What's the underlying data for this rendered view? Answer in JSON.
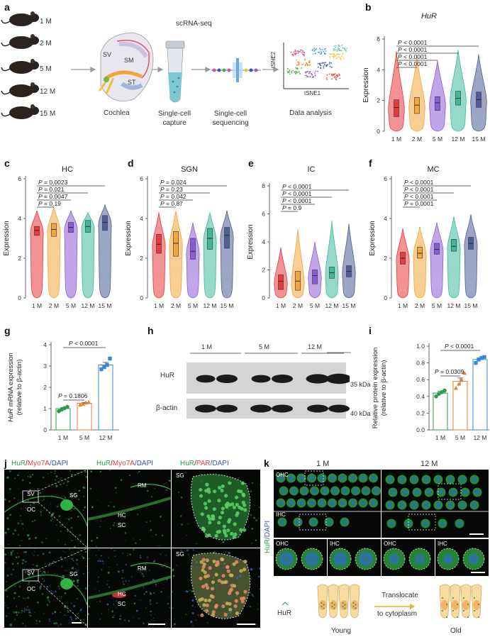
{
  "colors": {
    "1M": "#e8393d",
    "2M": "#f2a63b",
    "5M": "#8d5bd6",
    "12M": "#3fb99a",
    "15M": "#4d5f96",
    "green": "#2aa24a",
    "red_stain": "#e8393d",
    "blue_stain": "#3d56b4"
  },
  "panel_a": {
    "label": "a",
    "ages": [
      "1 M",
      "2 M",
      "5 M",
      "12 M",
      "15 M"
    ],
    "method": "scRNA-seq",
    "cochlea_regions": [
      "SV",
      "SM",
      "ST"
    ],
    "steps": [
      "Cochlea",
      "Single-cell capture",
      "Single-cell sequencing",
      "Data analysis"
    ],
    "tsne_x": "tSNE1",
    "tsne_y": "tSNE2"
  },
  "violin_panels": [
    {
      "label": "b",
      "title": "HuR",
      "italic": true,
      "ylabel": "Expression",
      "ylim": [
        0,
        6
      ],
      "yticks": [
        0,
        2,
        4,
        6
      ],
      "categories": [
        "1 M",
        "2 M",
        "5 M",
        "12 M",
        "15 M"
      ],
      "medians": [
        1.55,
        1.7,
        1.85,
        2.15,
        2.05
      ],
      "q1": [
        0.95,
        1.15,
        1.35,
        1.7,
        1.55
      ],
      "q3": [
        2.05,
        2.2,
        2.25,
        2.6,
        2.55
      ],
      "tops": [
        5.2,
        4.8,
        4.6,
        5.3,
        5.0
      ],
      "pvalues": [
        "P < 0.0001",
        "P < 0.0001",
        "P < 0.0001",
        "P < 0.0001"
      ],
      "pvalue_targets": [
        1,
        2,
        3,
        4
      ]
    },
    {
      "label": "c",
      "title": "HC",
      "italic": false,
      "ylabel": "Expression",
      "ylim": [
        0,
        6
      ],
      "yticks": [
        0,
        2,
        4,
        6
      ],
      "categories": [
        "1 M",
        "2 M",
        "5 M",
        "12 M",
        "15 M"
      ],
      "medians": [
        3.4,
        3.45,
        3.55,
        3.6,
        3.8
      ],
      "q1": [
        3.15,
        3.1,
        3.3,
        3.3,
        3.4
      ],
      "q3": [
        3.6,
        3.75,
        3.8,
        3.9,
        4.15
      ],
      "tops": [
        4.4,
        4.6,
        4.4,
        4.3,
        4.7
      ],
      "pvalues": [
        "P = 0.19",
        "P = 0.0047",
        "P = 0.021",
        "P = 0.0023"
      ],
      "pvalue_targets": [
        1,
        2,
        3,
        4
      ]
    },
    {
      "label": "d",
      "title": "SGN",
      "italic": false,
      "ylabel": "Expression",
      "ylim": [
        0,
        6
      ],
      "yticks": [
        0,
        2,
        4,
        6
      ],
      "categories": [
        "1 M",
        "2 M",
        "5 M",
        "12 M",
        "15 M"
      ],
      "medians": [
        2.7,
        2.75,
        2.35,
        3.0,
        3.15
      ],
      "q1": [
        2.25,
        2.1,
        1.95,
        2.45,
        2.5
      ],
      "q3": [
        3.2,
        3.35,
        3.0,
        3.5,
        3.55
      ],
      "tops": [
        4.3,
        4.4,
        3.8,
        4.3,
        4.4
      ],
      "pvalues": [
        "P = 0.87",
        "P = 0.042",
        "P = 0.23",
        "P = 0.024"
      ],
      "pvalue_targets": [
        1,
        2,
        3,
        4
      ]
    },
    {
      "label": "e",
      "title": "IC",
      "italic": false,
      "ylabel": "Expression",
      "ylim": [
        0,
        8
      ],
      "yticks": [
        0,
        2,
        4,
        6,
        8
      ],
      "categories": [
        "1 M",
        "2 M",
        "5 M",
        "12 M",
        "15 M"
      ],
      "medians": [
        1.2,
        1.2,
        1.6,
        1.8,
        1.9
      ],
      "q1": [
        0.6,
        0.55,
        1.0,
        1.4,
        1.5
      ],
      "q3": [
        1.65,
        1.9,
        2.0,
        2.2,
        2.3
      ],
      "tops": [
        3.6,
        4.9,
        4.0,
        5.5,
        5.3
      ],
      "pvalues": [
        "P = 0.9",
        "P < 0.0001",
        "P < 0.0001",
        "P < 0.0001"
      ],
      "pvalue_targets": [
        1,
        2,
        3,
        4
      ]
    },
    {
      "label": "f",
      "title": "MC",
      "italic": false,
      "ylabel": "Expression",
      "ylim": [
        0,
        6
      ],
      "yticks": [
        0,
        2,
        4,
        6
      ],
      "categories": [
        "1 M",
        "2 M",
        "5 M",
        "12 M",
        "15 M"
      ],
      "medians": [
        2.0,
        2.25,
        2.45,
        2.6,
        2.75
      ],
      "q1": [
        1.7,
        2.0,
        2.2,
        2.35,
        2.45
      ],
      "q3": [
        2.3,
        2.55,
        2.75,
        2.95,
        3.05
      ],
      "tops": [
        3.5,
        3.6,
        3.8,
        4.1,
        4.2
      ],
      "pvalues": [
        "P = 0.0001",
        "P < 0.0001",
        "P < 0.0001",
        "P < 0.0001"
      ],
      "pvalue_targets": [
        1,
        2,
        3,
        4
      ]
    }
  ],
  "chart_data": [
    {
      "type": "bar",
      "panel": "g",
      "categories": [
        "1 M",
        "5 M",
        "12 M"
      ],
      "values": [
        1.0,
        1.25,
        3.05
      ],
      "points": [
        [
          0.88,
          0.95,
          1.02,
          1.08
        ],
        [
          1.18,
          1.22,
          1.28,
          1.3
        ],
        [
          2.85,
          2.95,
          3.05,
          3.35
        ]
      ],
      "errors": [
        0.05,
        0.04,
        0.12
      ],
      "ylim": [
        0,
        4
      ],
      "yticks": [
        0,
        1,
        2,
        3,
        4
      ],
      "ylabel_italic": "HuR",
      "ylabel_rest": " mRNA expression",
      "ylabel2": "(relative to β-actin)",
      "pvalues": [
        {
          "text": "P = 0.1806",
          "from": 0,
          "to": 1
        },
        {
          "text": "P < 0.0001",
          "from": 0,
          "to": 2
        }
      ]
    },
    {
      "type": "bar",
      "panel": "i",
      "categories": [
        "1 M",
        "5 M",
        "12 M"
      ],
      "values": [
        0.44,
        0.58,
        0.84
      ],
      "points": [
        [
          0.4,
          0.43,
          0.45,
          0.47
        ],
        [
          0.5,
          0.55,
          0.6,
          0.68
        ],
        [
          0.8,
          0.84,
          0.86,
          0.87
        ]
      ],
      "errors": [
        0.02,
        0.04,
        0.02
      ],
      "ylim": [
        0,
        1.0
      ],
      "yticks": [
        0,
        0.2,
        0.4,
        0.6,
        0.8,
        1.0
      ],
      "ylabel_italic": "",
      "ylabel_rest": "Relative protein expression",
      "ylabel2": "(relative to β-actin)",
      "pvalues": [
        {
          "text": "P = 0.0309",
          "from": 0,
          "to": 1
        },
        {
          "text": "P < 0.0001",
          "from": 0,
          "to": 2
        }
      ]
    }
  ],
  "panel_h": {
    "label": "h",
    "groups": [
      "1 M",
      "5 M",
      "12 M"
    ],
    "rows": [
      "HuR",
      "β-actin"
    ],
    "markers": [
      "35 kDa",
      "40 kDa"
    ]
  },
  "panel_j": {
    "label": "j",
    "headers": [
      [
        {
          "t": "HuR",
          "c": "green"
        },
        {
          "t": "/",
          "c": "white"
        },
        {
          "t": "Myo7A",
          "c": "red"
        },
        {
          "t": "/DAPI",
          "c": "blue"
        }
      ],
      [
        {
          "t": "HuR",
          "c": "green"
        },
        {
          "t": "/",
          "c": "white"
        },
        {
          "t": "Myo7A",
          "c": "red"
        },
        {
          "t": "/DAPI",
          "c": "blue"
        }
      ],
      [
        {
          "t": "HuR",
          "c": "green"
        },
        {
          "t": "/",
          "c": "white"
        },
        {
          "t": "PAR",
          "c": "red"
        },
        {
          "t": "/DAPI",
          "c": "blue"
        }
      ]
    ],
    "labels_overview": [
      "SV",
      "OC",
      "SG"
    ],
    "labels_zoom": [
      "RM",
      "HC",
      "SC"
    ],
    "label_sg": "SG"
  },
  "panel_k": {
    "label": "k",
    "groups": [
      "1 M",
      "12 M"
    ],
    "side_label_hur": "HuR",
    "side_label_dapi": "/DAPI",
    "cell_labels": [
      "OHC",
      "IHC",
      "OHC",
      "IHC",
      "OHC",
      "IHC"
    ],
    "legend": "HuR",
    "arrow_text": [
      "Translocate",
      "to cytoplasm"
    ],
    "states": [
      "Young",
      "Old"
    ]
  }
}
